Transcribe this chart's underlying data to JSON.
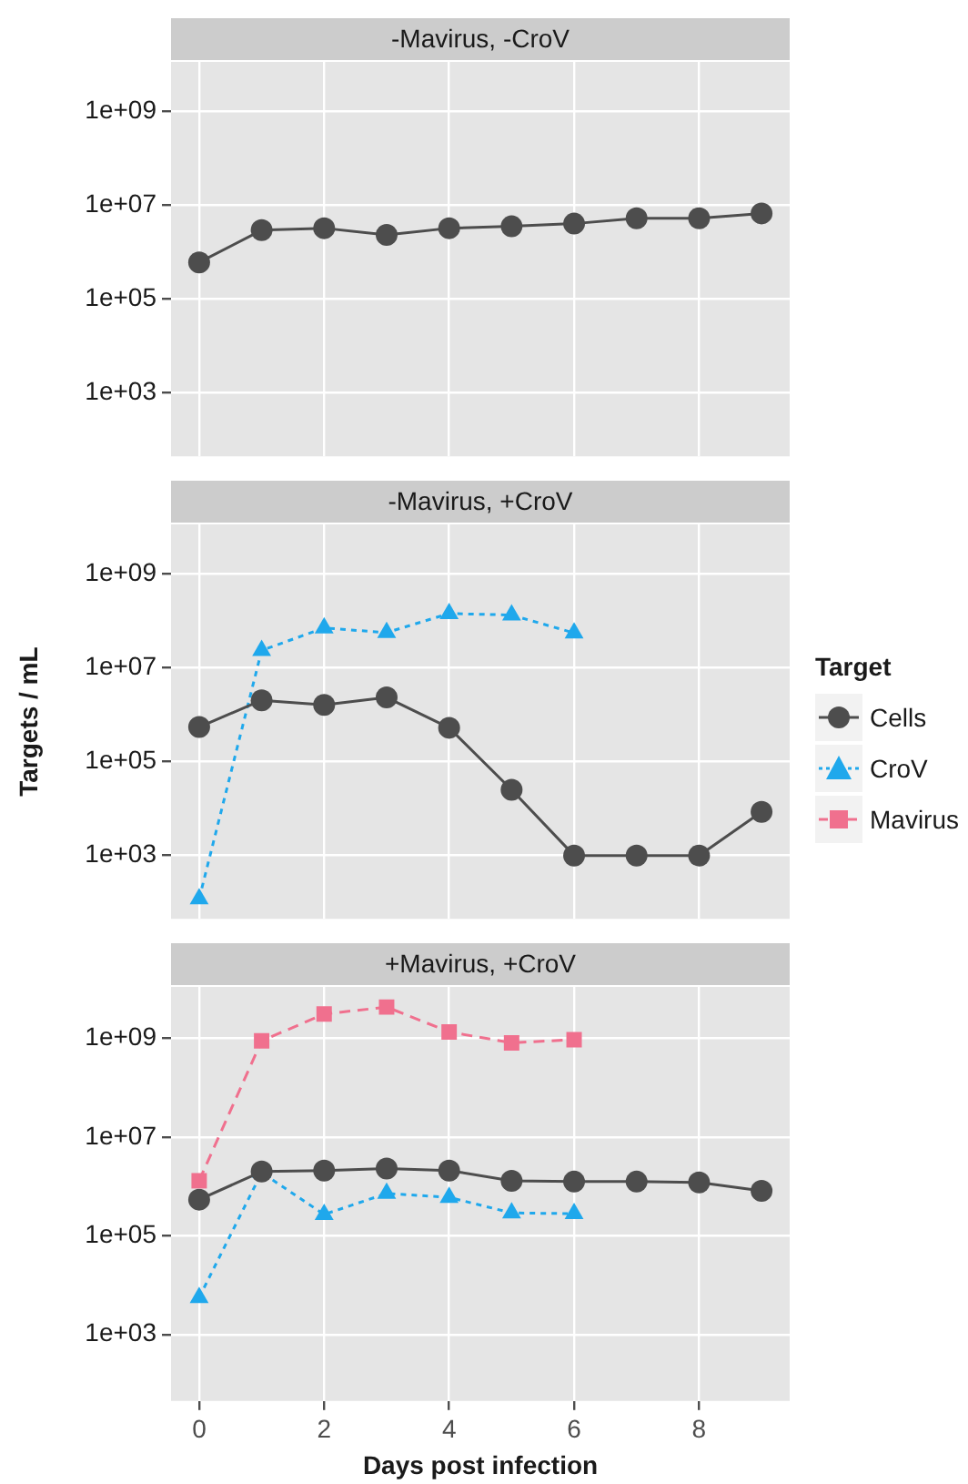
{
  "chart_data": [
    {
      "type": "line",
      "title": "-Mavirus, -CroV",
      "x": [
        0,
        1,
        2,
        3,
        4,
        5,
        6,
        7,
        8,
        9
      ],
      "xlim": [
        -0.45,
        9.45
      ],
      "xticks": [
        0,
        2,
        4,
        6,
        8
      ],
      "ylim": [
        45,
        11000000000
      ],
      "yticks": [
        {
          "value": 1000,
          "label": "1e+03"
        },
        {
          "value": 100000,
          "label": "1e+05"
        },
        {
          "value": 10000000,
          "label": "1e+07"
        },
        {
          "value": 1000000000,
          "label": "1e+09"
        }
      ],
      "log": "y",
      "grid": true,
      "tick_labels": "y",
      "series": [
        {
          "color": "#4d4d4d",
          "marker": "circle",
          "line_style": "solid",
          "values": [
            600000,
            2900000,
            3200000,
            2300000,
            3200000,
            3500000,
            4000000,
            5200000,
            5200000,
            6600000
          ]
        }
      ]
    },
    {
      "type": "line",
      "title": "-Mavirus, +CroV",
      "ylabel": "Targets / mL",
      "x": [
        0,
        1,
        2,
        3,
        4,
        5,
        6,
        7,
        8,
        9
      ],
      "xlim": [
        -0.45,
        9.45
      ],
      "xticks": [
        0,
        2,
        4,
        6,
        8
      ],
      "ylim": [
        45,
        11000000000
      ],
      "yticks": [
        {
          "value": 1000,
          "label": "1e+03"
        },
        {
          "value": 100000,
          "label": "1e+05"
        },
        {
          "value": 10000000,
          "label": "1e+07"
        },
        {
          "value": 1000000000,
          "label": "1e+09"
        }
      ],
      "log": "y",
      "grid": true,
      "tick_labels": "y",
      "series": [
        {
          "color": "#4d4d4d",
          "marker": "circle",
          "line_style": "solid",
          "values": [
            540000,
            2000000,
            1600000,
            2300000,
            520000,
            25000,
            1000,
            1000,
            1000,
            8500
          ]
        },
        {
          "color": "#1fa8ec",
          "marker": "triangle",
          "line_style": "dotted",
          "x": [
            0,
            1,
            2,
            3,
            4,
            5,
            6
          ],
          "values": [
            120,
            23000000,
            69000000,
            55000000,
            140000000,
            130000000,
            54000000
          ]
        }
      ]
    },
    {
      "type": "line",
      "title": "+Mavirus, +CroV",
      "xlabel": "Days post infection",
      "x": [
        0,
        1,
        2,
        3,
        4,
        5,
        6,
        7,
        8,
        9
      ],
      "xlim": [
        -0.45,
        9.45
      ],
      "xticks": [
        0,
        2,
        4,
        6,
        8
      ],
      "ylim": [
        45,
        11000000000
      ],
      "yticks": [
        {
          "value": 1000,
          "label": "1e+03"
        },
        {
          "value": 100000,
          "label": "1e+05"
        },
        {
          "value": 10000000,
          "label": "1e+07"
        },
        {
          "value": 1000000000,
          "label": "1e+09"
        }
      ],
      "log": "y",
      "grid": true,
      "legend": "right",
      "legend_title": "Target",
      "series": [
        {
          "name": "Cells",
          "color": "#4d4d4d",
          "marker": "circle",
          "line_style": "solid",
          "values": [
            540000,
            2000000,
            2100000,
            2300000,
            2100000,
            1300000,
            1250000,
            1250000,
            1200000,
            810000
          ]
        },
        {
          "name": "CroV",
          "color": "#1fa8ec",
          "marker": "triangle",
          "line_style": "dotted",
          "x": [
            0,
            1,
            2,
            3,
            4,
            5,
            6
          ],
          "values": [
            5600,
            1900000,
            270000,
            720000,
            600000,
            290000,
            280000
          ]
        },
        {
          "name": "Mavirus",
          "color": "#f0708e",
          "marker": "square",
          "line_style": "dashed",
          "x": [
            0,
            1,
            2,
            3,
            4,
            5,
            6
          ],
          "values": [
            1300000,
            890000000,
            3100000000,
            4300000000,
            1350000000,
            810000000,
            940000000
          ]
        }
      ]
    }
  ]
}
